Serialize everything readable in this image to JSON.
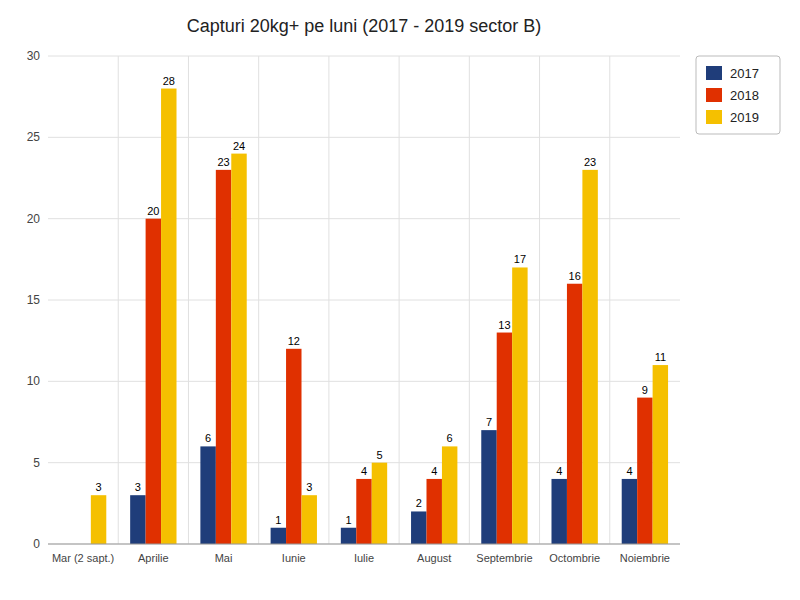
{
  "chart_data": {
    "type": "bar",
    "title": "Capturi 20kg+ pe luni (2017 - 2019 sector B)",
    "categories": [
      "Mar (2 sapt.)",
      "Aprilie",
      "Mai",
      "Iunie",
      "Iulie",
      "August",
      "Septembrie",
      "Octombrie",
      "Noiembrie"
    ],
    "series": [
      {
        "name": "2017",
        "color": "#1f3d7a",
        "values": [
          0,
          3,
          6,
          1,
          1,
          2,
          7,
          4,
          4
        ]
      },
      {
        "name": "2018",
        "color": "#e03000",
        "values": [
          0,
          20,
          23,
          12,
          4,
          4,
          13,
          16,
          9
        ]
      },
      {
        "name": "2019",
        "color": "#f5c000",
        "values": [
          3,
          28,
          24,
          3,
          5,
          6,
          17,
          23,
          11
        ]
      }
    ],
    "ylim": [
      0,
      30
    ],
    "yticks": [
      0,
      5,
      10,
      15,
      20,
      25,
      30
    ],
    "grid": true,
    "legend": "right",
    "data_labels": true
  }
}
